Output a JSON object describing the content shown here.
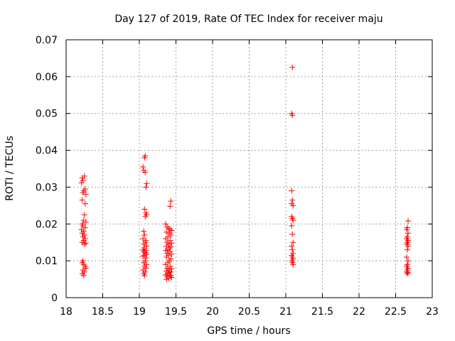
{
  "chart_data": {
    "type": "scatter",
    "title": "Day 127 of 2019, Rate Of TEC Index for receiver maju",
    "xlabel": "GPS time / hours",
    "ylabel": "ROTI / TECUs",
    "xlim": [
      18,
      23
    ],
    "ylim": [
      0,
      0.07
    ],
    "grid": true,
    "marker": "+",
    "marker_color": "#ff0000",
    "x_ticks": [
      {
        "value": 18,
        "label": "18"
      },
      {
        "value": 18.5,
        "label": "18.5"
      },
      {
        "value": 19,
        "label": "19"
      },
      {
        "value": 19.5,
        "label": "19.5"
      },
      {
        "value": 20,
        "label": "20"
      },
      {
        "value": 20.5,
        "label": "20.5"
      },
      {
        "value": 21,
        "label": "21"
      },
      {
        "value": 21.5,
        "label": "21.5"
      },
      {
        "value": 22,
        "label": "22"
      },
      {
        "value": 22.5,
        "label": "22.5"
      },
      {
        "value": 23,
        "label": "23"
      }
    ],
    "y_ticks": [
      {
        "value": 0,
        "label": "0"
      },
      {
        "value": 0.01,
        "label": "0.01"
      },
      {
        "value": 0.02,
        "label": "0.02"
      },
      {
        "value": 0.03,
        "label": "0.03"
      },
      {
        "value": 0.04,
        "label": "0.04"
      },
      {
        "value": 0.05,
        "label": "0.05"
      },
      {
        "value": 0.06,
        "label": "0.06"
      },
      {
        "value": 0.07,
        "label": "0.07"
      }
    ],
    "series": [
      {
        "name": "ROTI",
        "points": [
          [
            18.22,
            0.0325
          ],
          [
            18.23,
            0.0318
          ],
          [
            18.25,
            0.033
          ],
          [
            18.21,
            0.0312
          ],
          [
            18.24,
            0.029
          ],
          [
            18.26,
            0.0295
          ],
          [
            18.23,
            0.0285
          ],
          [
            18.27,
            0.028
          ],
          [
            18.22,
            0.0265
          ],
          [
            18.26,
            0.0255
          ],
          [
            18.25,
            0.0225
          ],
          [
            18.24,
            0.021
          ],
          [
            18.22,
            0.02
          ],
          [
            18.23,
            0.0195
          ],
          [
            18.27,
            0.0205
          ],
          [
            18.26,
            0.019
          ],
          [
            18.21,
            0.0185
          ],
          [
            18.24,
            0.018
          ],
          [
            18.22,
            0.0175
          ],
          [
            18.25,
            0.017
          ],
          [
            18.23,
            0.0165
          ],
          [
            18.26,
            0.016
          ],
          [
            18.24,
            0.0155
          ],
          [
            18.22,
            0.015
          ],
          [
            18.27,
            0.0148
          ],
          [
            18.25,
            0.0145
          ],
          [
            18.23,
            0.01
          ],
          [
            18.22,
            0.0095
          ],
          [
            18.24,
            0.009
          ],
          [
            18.26,
            0.0085
          ],
          [
            18.27,
            0.008
          ],
          [
            18.23,
            0.0075
          ],
          [
            18.22,
            0.0065
          ],
          [
            18.24,
            0.006
          ],
          [
            18.25,
            0.007
          ],
          [
            19.05,
            0.0355
          ],
          [
            19.07,
            0.038
          ],
          [
            19.08,
            0.0385
          ],
          [
            19.06,
            0.0345
          ],
          [
            19.08,
            0.034
          ],
          [
            19.1,
            0.031
          ],
          [
            19.09,
            0.03
          ],
          [
            19.07,
            0.024
          ],
          [
            19.09,
            0.023
          ],
          [
            19.1,
            0.0225
          ],
          [
            19.08,
            0.022
          ],
          [
            19.06,
            0.018
          ],
          [
            19.07,
            0.017
          ],
          [
            19.05,
            0.016
          ],
          [
            19.09,
            0.0155
          ],
          [
            19.08,
            0.015
          ],
          [
            19.06,
            0.0145
          ],
          [
            19.1,
            0.014
          ],
          [
            19.07,
            0.0135
          ],
          [
            19.05,
            0.013
          ],
          [
            19.09,
            0.0128
          ],
          [
            19.06,
            0.0125
          ],
          [
            19.08,
            0.0122
          ],
          [
            19.1,
            0.0118
          ],
          [
            19.07,
            0.0115
          ],
          [
            19.05,
            0.0112
          ],
          [
            19.09,
            0.0108
          ],
          [
            19.08,
            0.01
          ],
          [
            19.06,
            0.0095
          ],
          [
            19.1,
            0.009
          ],
          [
            19.07,
            0.0085
          ],
          [
            19.09,
            0.008
          ],
          [
            19.05,
            0.0075
          ],
          [
            19.08,
            0.007
          ],
          [
            19.06,
            0.0065
          ],
          [
            19.07,
            0.006
          ],
          [
            19.43,
            0.0262
          ],
          [
            19.42,
            0.0248
          ],
          [
            19.36,
            0.02
          ],
          [
            19.38,
            0.0192
          ],
          [
            19.4,
            0.0188
          ],
          [
            19.42,
            0.0185
          ],
          [
            19.44,
            0.0182
          ],
          [
            19.37,
            0.0178
          ],
          [
            19.41,
            0.0175
          ],
          [
            19.43,
            0.017
          ],
          [
            19.39,
            0.0165
          ],
          [
            19.36,
            0.016
          ],
          [
            19.42,
            0.0155
          ],
          [
            19.38,
            0.015
          ],
          [
            19.44,
            0.0148
          ],
          [
            19.4,
            0.0145
          ],
          [
            19.37,
            0.014
          ],
          [
            19.43,
            0.0138
          ],
          [
            19.41,
            0.0135
          ],
          [
            19.39,
            0.013
          ],
          [
            19.36,
            0.0128
          ],
          [
            19.42,
            0.0125
          ],
          [
            19.38,
            0.012
          ],
          [
            19.44,
            0.0118
          ],
          [
            19.4,
            0.0115
          ],
          [
            19.37,
            0.011
          ],
          [
            19.43,
            0.0105
          ],
          [
            19.41,
            0.01
          ],
          [
            19.39,
            0.0095
          ],
          [
            19.36,
            0.009
          ],
          [
            19.42,
            0.0085
          ],
          [
            19.38,
            0.008
          ],
          [
            19.44,
            0.0078
          ],
          [
            19.4,
            0.0075
          ],
          [
            19.37,
            0.0072
          ],
          [
            19.43,
            0.007
          ],
          [
            19.41,
            0.0068
          ],
          [
            19.39,
            0.0065
          ],
          [
            19.36,
            0.0062
          ],
          [
            19.42,
            0.006
          ],
          [
            19.38,
            0.0058
          ],
          [
            19.44,
            0.0055
          ],
          [
            19.4,
            0.0052
          ],
          [
            19.37,
            0.005
          ],
          [
            19.43,
            0.006
          ],
          [
            21.09,
            0.0625
          ],
          [
            21.08,
            0.05
          ],
          [
            21.09,
            0.0495
          ],
          [
            21.08,
            0.029
          ],
          [
            21.09,
            0.0265
          ],
          [
            21.08,
            0.0255
          ],
          [
            21.1,
            0.025
          ],
          [
            21.08,
            0.022
          ],
          [
            21.09,
            0.0215
          ],
          [
            21.1,
            0.021
          ],
          [
            21.08,
            0.0195
          ],
          [
            21.09,
            0.0172
          ],
          [
            21.1,
            0.015
          ],
          [
            21.08,
            0.014
          ],
          [
            21.09,
            0.013
          ],
          [
            21.1,
            0.012
          ],
          [
            21.08,
            0.0115
          ],
          [
            21.09,
            0.011
          ],
          [
            21.1,
            0.0105
          ],
          [
            21.08,
            0.01
          ],
          [
            21.09,
            0.0095
          ],
          [
            21.1,
            0.009
          ],
          [
            22.67,
            0.0208
          ],
          [
            22.66,
            0.019
          ],
          [
            22.65,
            0.0185
          ],
          [
            22.67,
            0.0175
          ],
          [
            22.66,
            0.0165
          ],
          [
            22.65,
            0.016
          ],
          [
            22.67,
            0.0155
          ],
          [
            22.66,
            0.015
          ],
          [
            22.65,
            0.0145
          ],
          [
            22.67,
            0.014
          ],
          [
            22.66,
            0.013
          ],
          [
            22.65,
            0.011
          ],
          [
            22.67,
            0.01
          ],
          [
            22.66,
            0.009
          ],
          [
            22.65,
            0.0085
          ],
          [
            22.67,
            0.008
          ],
          [
            22.66,
            0.0075
          ],
          [
            22.65,
            0.007
          ],
          [
            22.67,
            0.0068
          ],
          [
            22.66,
            0.0065
          ]
        ]
      }
    ]
  }
}
